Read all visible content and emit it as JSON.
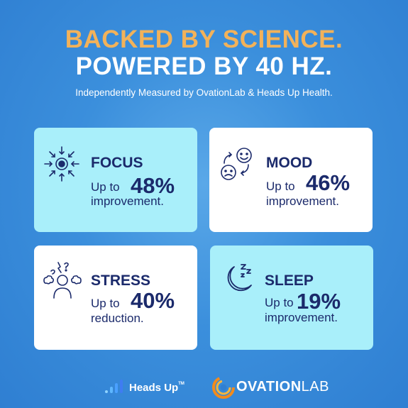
{
  "header": {
    "line1": "BACKED BY SCIENCE.",
    "line2": "POWERED BY 40 HZ.",
    "subtitle": "Independently Measured by OvationLab & Heads Up Health."
  },
  "cards": [
    {
      "title": "FOCUS",
      "upto": "Up to",
      "percent": "48%",
      "desc": "improvement.",
      "icon": "focus-burst-icon",
      "bg": "#a9effa"
    },
    {
      "title": "MOOD",
      "upto": "Up to",
      "percent": "46%",
      "desc": "improvement.",
      "icon": "mood-faces-icon",
      "bg": "#ffffff"
    },
    {
      "title": "STRESS",
      "upto": "Up to",
      "percent": "40%",
      "desc": "reduction.",
      "icon": "stressed-person-icon",
      "bg": "#ffffff"
    },
    {
      "title": "SLEEP",
      "upto": "Up to",
      "percent": "19%",
      "desc": "improvement.",
      "icon": "moon-sleep-icon",
      "bg": "#a9effa"
    }
  ],
  "footer": {
    "heads_up_logo": "Heads Up",
    "heads_up_tm": "TM",
    "ovation_bold": "OVATION",
    "ovation_light": "LAB"
  },
  "colors": {
    "accent_orange": "#f2b25a",
    "navy_text": "#1b2a6b",
    "card_aqua": "#a9effa",
    "background_blue": "#3b8fdc"
  }
}
